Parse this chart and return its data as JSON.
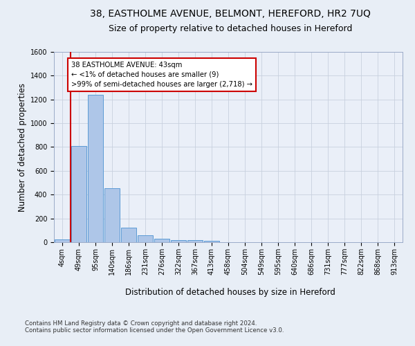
{
  "title_line1": "38, EASTHOLME AVENUE, BELMONT, HEREFORD, HR2 7UQ",
  "title_line2": "Size of property relative to detached houses in Hereford",
  "xlabel": "Distribution of detached houses by size in Hereford",
  "ylabel": "Number of detached properties",
  "footnote": "Contains HM Land Registry data © Crown copyright and database right 2024.\nContains public sector information licensed under the Open Government Licence v3.0.",
  "bar_labels": [
    "4sqm",
    "49sqm",
    "95sqm",
    "140sqm",
    "186sqm",
    "231sqm",
    "276sqm",
    "322sqm",
    "367sqm",
    "413sqm",
    "458sqm",
    "504sqm",
    "549sqm",
    "595sqm",
    "640sqm",
    "686sqm",
    "731sqm",
    "777sqm",
    "822sqm",
    "868sqm",
    "913sqm"
  ],
  "bar_values": [
    25,
    810,
    1240,
    455,
    125,
    58,
    27,
    18,
    15,
    10,
    0,
    0,
    0,
    0,
    0,
    0,
    0,
    0,
    0,
    0,
    0
  ],
  "bar_color": "#aec6e8",
  "bar_edge_color": "#5b9bd5",
  "highlight_color": "#cc0000",
  "annotation_text": "38 EASTHOLME AVENUE: 43sqm\n← <1% of detached houses are smaller (9)\n>99% of semi-detached houses are larger (2,718) →",
  "annotation_box_color": "#cc0000",
  "ylim": [
    0,
    1600
  ],
  "yticks": [
    0,
    200,
    400,
    600,
    800,
    1000,
    1200,
    1400,
    1600
  ],
  "grid_color": "#c8d0de",
  "bg_color": "#e8eef6",
  "plot_bg_color": "#eaeff8",
  "title_fontsize": 10,
  "subtitle_fontsize": 9,
  "axis_label_fontsize": 8.5,
  "tick_fontsize": 7,
  "footnote_fontsize": 6.2
}
